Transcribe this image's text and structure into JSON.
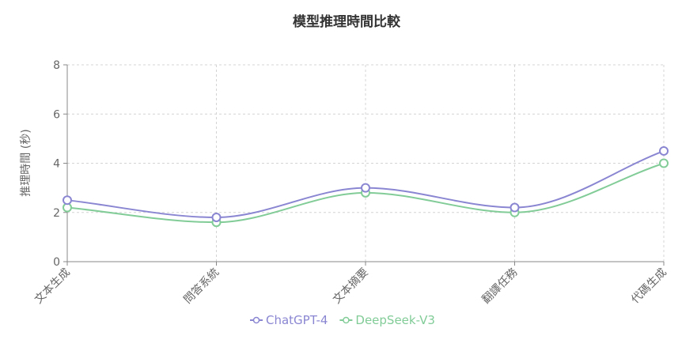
{
  "chart_data": {
    "type": "line",
    "title": "模型推理時間比較",
    "ylabel": "推理時間 (秒)",
    "xlabel": "",
    "categories": [
      "文本生成",
      "問答系統",
      "文本摘要",
      "翻譯任務",
      "代碼生成"
    ],
    "ylim": [
      0,
      8
    ],
    "yticks": [
      0,
      2,
      4,
      6,
      8
    ],
    "grid": true,
    "smooth": true,
    "legend_position": "bottom",
    "series": [
      {
        "name": "ChatGPT-4",
        "color": "#8a86d2",
        "values": [
          2.5,
          1.8,
          3.0,
          2.2,
          4.5
        ]
      },
      {
        "name": "DeepSeek-V3",
        "color": "#82cc98",
        "values": [
          2.2,
          1.6,
          2.8,
          2.0,
          4.0
        ]
      }
    ]
  }
}
